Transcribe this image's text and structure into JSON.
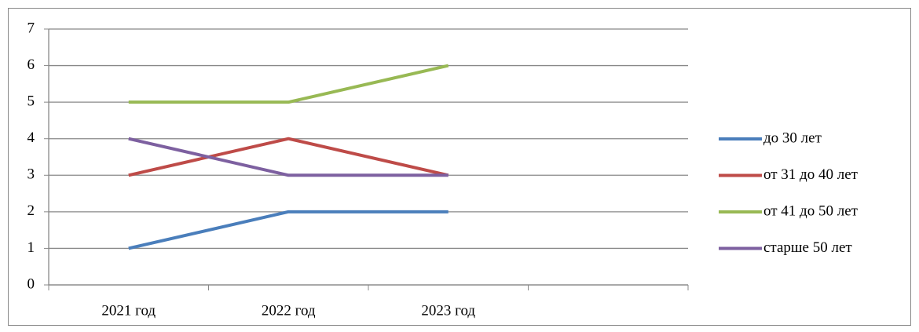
{
  "chart_data": {
    "type": "line",
    "categories": [
      "2021 год",
      "2022 год",
      "2023 год",
      null
    ],
    "series": [
      {
        "name": "до 30 лет",
        "color": "#4a7ebb",
        "values": [
          1,
          2,
          2,
          null
        ]
      },
      {
        "name": "от 31 до 40 лет",
        "color": "#be4b48",
        "values": [
          3,
          4,
          3,
          null
        ]
      },
      {
        "name": "от 41 до 50 лет",
        "color": "#98b954",
        "values": [
          5,
          5,
          6,
          null
        ]
      },
      {
        "name": "старше 50 лет",
        "color": "#7d60a0",
        "values": [
          4,
          3,
          3,
          null
        ]
      }
    ],
    "ylim": [
      0,
      7
    ],
    "yticks": [
      0,
      1,
      2,
      3,
      4,
      5,
      6,
      7
    ],
    "grid": true,
    "legend": "right"
  }
}
